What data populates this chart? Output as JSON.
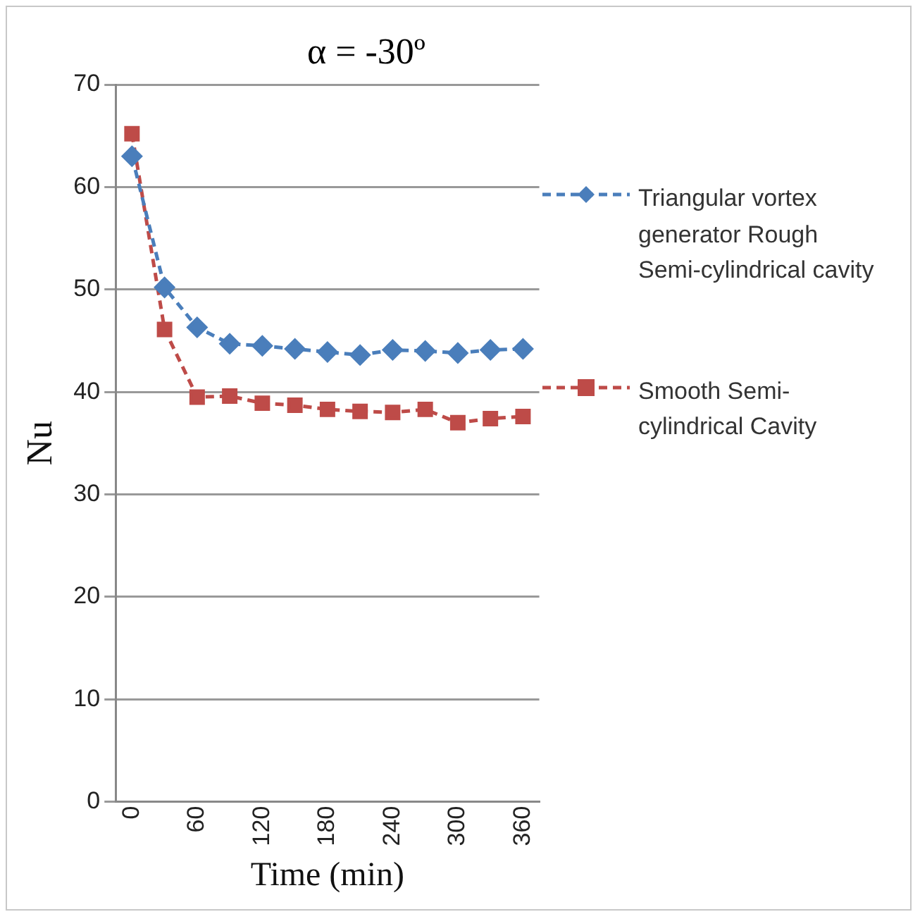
{
  "chart_data": {
    "type": "line",
    "title": "α = -30º",
    "xlabel": "Time (min)",
    "ylabel": "Nu",
    "x": [
      0,
      30,
      60,
      90,
      120,
      150,
      180,
      210,
      240,
      270,
      300,
      330,
      360
    ],
    "series": [
      {
        "name": "Triangular vortex generator Rough Semi-cylindrical cavity",
        "color": "#4a7ebb",
        "marker": "diamond",
        "values": [
          63,
          50.2,
          46.3,
          44.7,
          44.5,
          44.2,
          43.9,
          43.6,
          44.1,
          44,
          43.8,
          44.1,
          44.2
        ]
      },
      {
        "name": "Smooth Semi-cylindrical Cavity",
        "color": "#be4b48",
        "marker": "square",
        "values": [
          65.2,
          46.1,
          39.5,
          39.6,
          38.9,
          38.7,
          38.3,
          38.1,
          38,
          38.3,
          37,
          37.4,
          37.6
        ]
      }
    ],
    "xlim": [
      -15,
      375
    ],
    "xticks": [
      0,
      60,
      120,
      180,
      240,
      300,
      360
    ],
    "ylim": [
      0,
      70
    ],
    "yticks": [
      0,
      10,
      20,
      30,
      40,
      50,
      60,
      70
    ],
    "grid": "y",
    "legend": "right",
    "line_style": "dashed"
  }
}
